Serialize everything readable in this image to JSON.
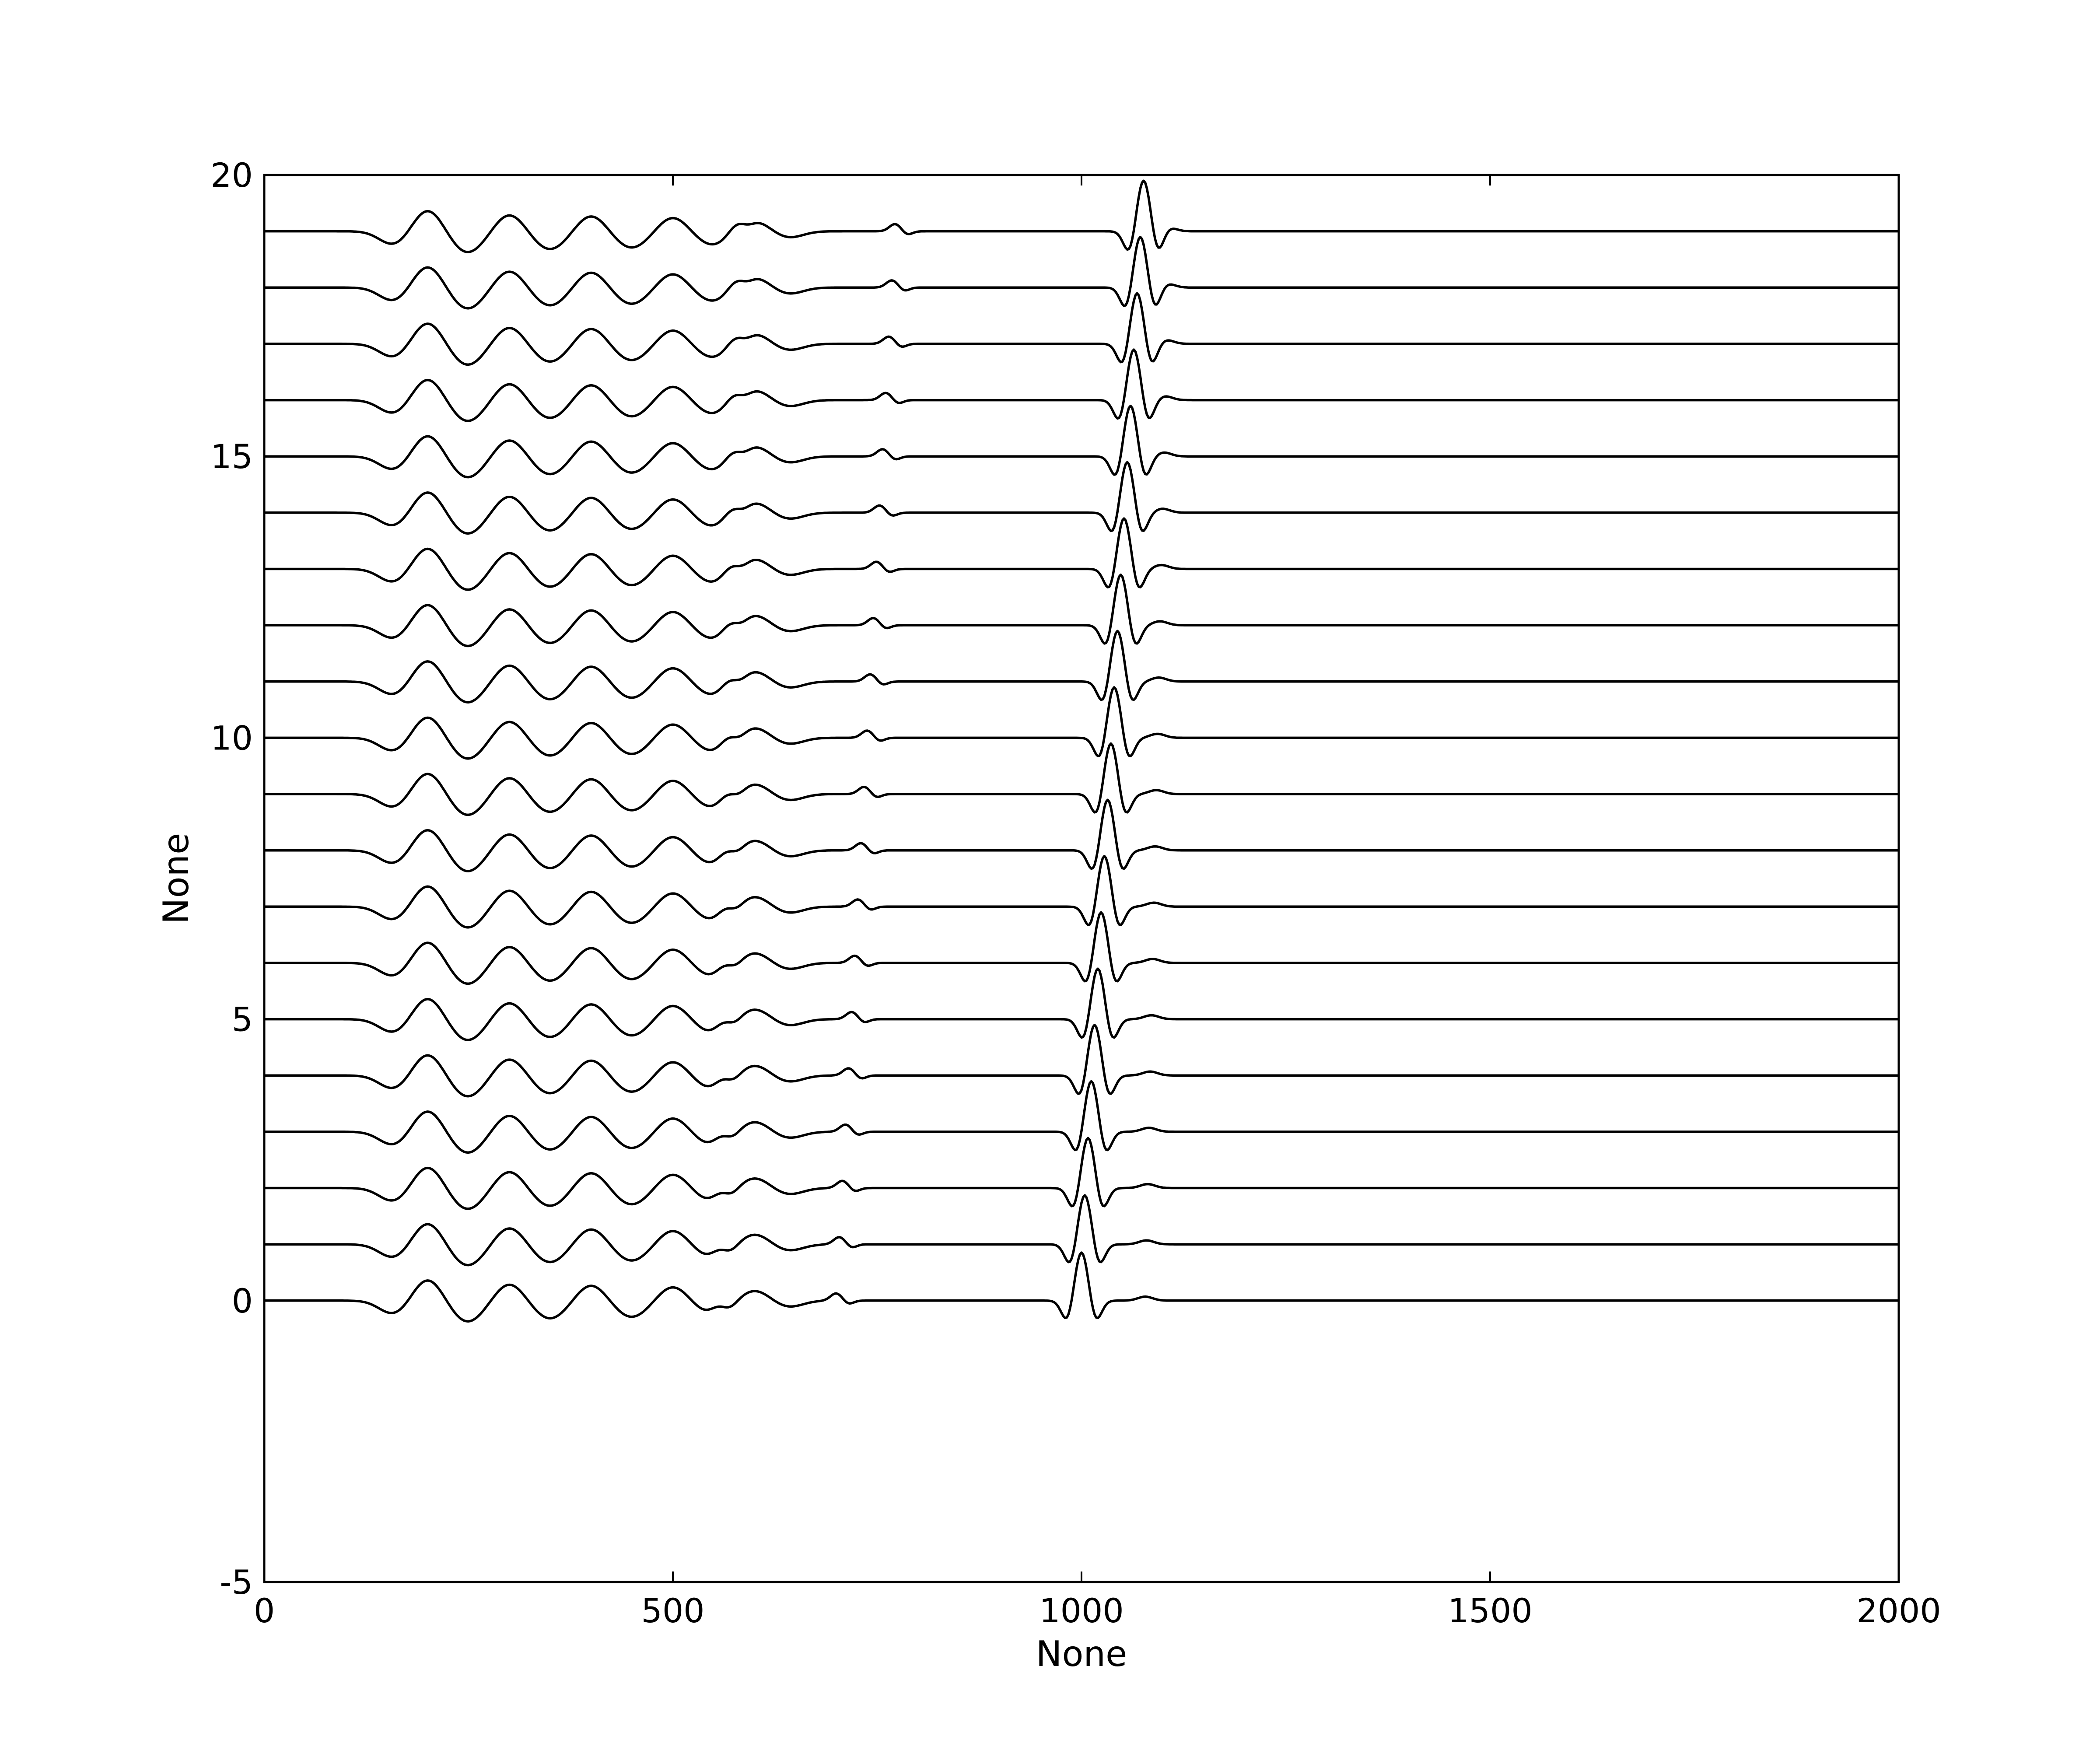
{
  "chart_data": {
    "type": "line",
    "title": "",
    "xlabel": "None",
    "ylabel": "None",
    "xlim": [
      0,
      2000
    ],
    "ylim": [
      -5,
      20
    ],
    "xticks": [
      0,
      500,
      1000,
      1500,
      2000
    ],
    "xtick_labels": [
      "0",
      "500",
      "1000",
      "1500",
      "2000"
    ],
    "yticks": [
      -5,
      0,
      5,
      10,
      15,
      20
    ],
    "ytick_labels": [
      "-5",
      "0",
      "5",
      "10",
      "15",
      "20"
    ],
    "grid": false,
    "legend": "none",
    "line_color": "#000000",
    "trace_count": 20,
    "trace_offsets": [
      0,
      1,
      2,
      3,
      4,
      5,
      6,
      7,
      8,
      9,
      10,
      11,
      12,
      13,
      14,
      15,
      16,
      17,
      18,
      19
    ],
    "direct_arrival_x": [
      1000,
      1004,
      1008,
      1012,
      1016,
      1020,
      1024,
      1028,
      1032,
      1036,
      1040,
      1044,
      1048,
      1052,
      1056,
      1060,
      1064,
      1068,
      1072,
      1076
    ],
    "direct_arrival_peak": [
      0.95,
      0.97,
      0.99,
      1.0,
      1.0,
      1.0,
      1.0,
      1.0,
      1.0,
      1.0,
      1.0,
      1.0,
      1.0,
      1.0,
      1.0,
      1.0,
      1.0,
      1.0,
      1.0,
      1.0
    ],
    "early_wavelet_x": [
      200,
      300,
      400,
      500,
      600
    ],
    "early_wavelet_peak": [
      0.38,
      0.3,
      0.28,
      0.25,
      0.18
    ]
  }
}
